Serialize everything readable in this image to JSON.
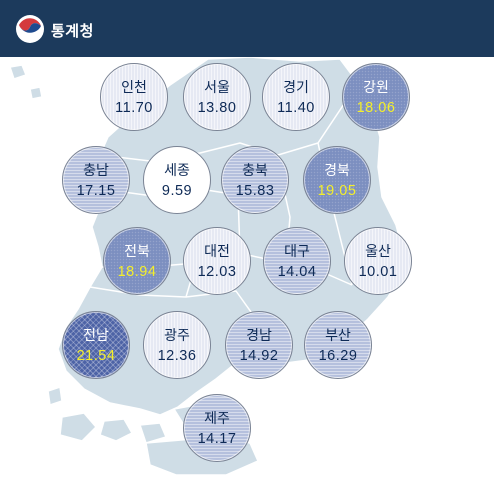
{
  "header": {
    "title": "통계청"
  },
  "colors": {
    "header_bg": "#1c3a5c",
    "level_0": "#ffffff",
    "level_1": "#e6e9f3",
    "level_2": "#b5c0dd",
    "level_3": "#7c8fc0",
    "level_4": "#4d63a6",
    "highlight_value": "#f4ef2a",
    "map_land": "#cfdde6"
  },
  "regions": {
    "incheon": {
      "name": "인천",
      "value": "11.70",
      "level": 1
    },
    "seoul": {
      "name": "서울",
      "value": "13.80",
      "level": 1
    },
    "gyeonggi": {
      "name": "경기",
      "value": "11.40",
      "level": 1
    },
    "gangwon": {
      "name": "강원",
      "value": "18.06",
      "level": 3
    },
    "chungnam": {
      "name": "충남",
      "value": "17.15",
      "level": 2
    },
    "sejong": {
      "name": "세종",
      "value": "9.59",
      "level": 0
    },
    "chungbuk": {
      "name": "충북",
      "value": "15.83",
      "level": 2
    },
    "gyeongbuk": {
      "name": "경북",
      "value": "19.05",
      "level": 3
    },
    "jeonbuk": {
      "name": "전북",
      "value": "18.94",
      "level": 3
    },
    "daejeon": {
      "name": "대전",
      "value": "12.03",
      "level": 1
    },
    "daegu": {
      "name": "대구",
      "value": "14.04",
      "level": 2
    },
    "ulsan": {
      "name": "울산",
      "value": "10.01",
      "level": 1
    },
    "jeonnam": {
      "name": "전남",
      "value": "21.54",
      "level": 4
    },
    "gwangju": {
      "name": "광주",
      "value": "12.36",
      "level": 1
    },
    "gyeongnam": {
      "name": "경남",
      "value": "14.92",
      "level": 2
    },
    "busan": {
      "name": "부산",
      "value": "16.29",
      "level": 2
    },
    "jeju": {
      "name": "제주",
      "value": "14.17",
      "level": 2
    }
  }
}
